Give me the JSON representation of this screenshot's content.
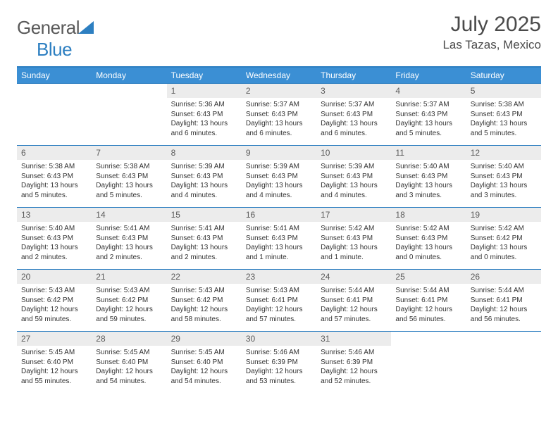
{
  "brand": {
    "name_part1": "General",
    "name_part2": "Blue",
    "logo_color": "#2d7fc1"
  },
  "title": "July 2025",
  "location": "Las Tazas, Mexico",
  "colors": {
    "header_bg": "#3b8fd4",
    "border": "#2d7fc1",
    "daynum_bg": "#ececec",
    "text_gray": "#5a5a5a",
    "body_text": "#333333"
  },
  "day_headers": [
    "Sunday",
    "Monday",
    "Tuesday",
    "Wednesday",
    "Thursday",
    "Friday",
    "Saturday"
  ],
  "weeks": [
    [
      {
        "n": "",
        "lines": []
      },
      {
        "n": "",
        "lines": []
      },
      {
        "n": "1",
        "lines": [
          "Sunrise: 5:36 AM",
          "Sunset: 6:43 PM",
          "Daylight: 13 hours",
          "and 6 minutes."
        ]
      },
      {
        "n": "2",
        "lines": [
          "Sunrise: 5:37 AM",
          "Sunset: 6:43 PM",
          "Daylight: 13 hours",
          "and 6 minutes."
        ]
      },
      {
        "n": "3",
        "lines": [
          "Sunrise: 5:37 AM",
          "Sunset: 6:43 PM",
          "Daylight: 13 hours",
          "and 6 minutes."
        ]
      },
      {
        "n": "4",
        "lines": [
          "Sunrise: 5:37 AM",
          "Sunset: 6:43 PM",
          "Daylight: 13 hours",
          "and 5 minutes."
        ]
      },
      {
        "n": "5",
        "lines": [
          "Sunrise: 5:38 AM",
          "Sunset: 6:43 PM",
          "Daylight: 13 hours",
          "and 5 minutes."
        ]
      }
    ],
    [
      {
        "n": "6",
        "lines": [
          "Sunrise: 5:38 AM",
          "Sunset: 6:43 PM",
          "Daylight: 13 hours",
          "and 5 minutes."
        ]
      },
      {
        "n": "7",
        "lines": [
          "Sunrise: 5:38 AM",
          "Sunset: 6:43 PM",
          "Daylight: 13 hours",
          "and 5 minutes."
        ]
      },
      {
        "n": "8",
        "lines": [
          "Sunrise: 5:39 AM",
          "Sunset: 6:43 PM",
          "Daylight: 13 hours",
          "and 4 minutes."
        ]
      },
      {
        "n": "9",
        "lines": [
          "Sunrise: 5:39 AM",
          "Sunset: 6:43 PM",
          "Daylight: 13 hours",
          "and 4 minutes."
        ]
      },
      {
        "n": "10",
        "lines": [
          "Sunrise: 5:39 AM",
          "Sunset: 6:43 PM",
          "Daylight: 13 hours",
          "and 4 minutes."
        ]
      },
      {
        "n": "11",
        "lines": [
          "Sunrise: 5:40 AM",
          "Sunset: 6:43 PM",
          "Daylight: 13 hours",
          "and 3 minutes."
        ]
      },
      {
        "n": "12",
        "lines": [
          "Sunrise: 5:40 AM",
          "Sunset: 6:43 PM",
          "Daylight: 13 hours",
          "and 3 minutes."
        ]
      }
    ],
    [
      {
        "n": "13",
        "lines": [
          "Sunrise: 5:40 AM",
          "Sunset: 6:43 PM",
          "Daylight: 13 hours",
          "and 2 minutes."
        ]
      },
      {
        "n": "14",
        "lines": [
          "Sunrise: 5:41 AM",
          "Sunset: 6:43 PM",
          "Daylight: 13 hours",
          "and 2 minutes."
        ]
      },
      {
        "n": "15",
        "lines": [
          "Sunrise: 5:41 AM",
          "Sunset: 6:43 PM",
          "Daylight: 13 hours",
          "and 2 minutes."
        ]
      },
      {
        "n": "16",
        "lines": [
          "Sunrise: 5:41 AM",
          "Sunset: 6:43 PM",
          "Daylight: 13 hours",
          "and 1 minute."
        ]
      },
      {
        "n": "17",
        "lines": [
          "Sunrise: 5:42 AM",
          "Sunset: 6:43 PM",
          "Daylight: 13 hours",
          "and 1 minute."
        ]
      },
      {
        "n": "18",
        "lines": [
          "Sunrise: 5:42 AM",
          "Sunset: 6:43 PM",
          "Daylight: 13 hours",
          "and 0 minutes."
        ]
      },
      {
        "n": "19",
        "lines": [
          "Sunrise: 5:42 AM",
          "Sunset: 6:42 PM",
          "Daylight: 13 hours",
          "and 0 minutes."
        ]
      }
    ],
    [
      {
        "n": "20",
        "lines": [
          "Sunrise: 5:43 AM",
          "Sunset: 6:42 PM",
          "Daylight: 12 hours",
          "and 59 minutes."
        ]
      },
      {
        "n": "21",
        "lines": [
          "Sunrise: 5:43 AM",
          "Sunset: 6:42 PM",
          "Daylight: 12 hours",
          "and 59 minutes."
        ]
      },
      {
        "n": "22",
        "lines": [
          "Sunrise: 5:43 AM",
          "Sunset: 6:42 PM",
          "Daylight: 12 hours",
          "and 58 minutes."
        ]
      },
      {
        "n": "23",
        "lines": [
          "Sunrise: 5:43 AM",
          "Sunset: 6:41 PM",
          "Daylight: 12 hours",
          "and 57 minutes."
        ]
      },
      {
        "n": "24",
        "lines": [
          "Sunrise: 5:44 AM",
          "Sunset: 6:41 PM",
          "Daylight: 12 hours",
          "and 57 minutes."
        ]
      },
      {
        "n": "25",
        "lines": [
          "Sunrise: 5:44 AM",
          "Sunset: 6:41 PM",
          "Daylight: 12 hours",
          "and 56 minutes."
        ]
      },
      {
        "n": "26",
        "lines": [
          "Sunrise: 5:44 AM",
          "Sunset: 6:41 PM",
          "Daylight: 12 hours",
          "and 56 minutes."
        ]
      }
    ],
    [
      {
        "n": "27",
        "lines": [
          "Sunrise: 5:45 AM",
          "Sunset: 6:40 PM",
          "Daylight: 12 hours",
          "and 55 minutes."
        ]
      },
      {
        "n": "28",
        "lines": [
          "Sunrise: 5:45 AM",
          "Sunset: 6:40 PM",
          "Daylight: 12 hours",
          "and 54 minutes."
        ]
      },
      {
        "n": "29",
        "lines": [
          "Sunrise: 5:45 AM",
          "Sunset: 6:40 PM",
          "Daylight: 12 hours",
          "and 54 minutes."
        ]
      },
      {
        "n": "30",
        "lines": [
          "Sunrise: 5:46 AM",
          "Sunset: 6:39 PM",
          "Daylight: 12 hours",
          "and 53 minutes."
        ]
      },
      {
        "n": "31",
        "lines": [
          "Sunrise: 5:46 AM",
          "Sunset: 6:39 PM",
          "Daylight: 12 hours",
          "and 52 minutes."
        ]
      },
      {
        "n": "",
        "lines": []
      },
      {
        "n": "",
        "lines": []
      }
    ]
  ]
}
